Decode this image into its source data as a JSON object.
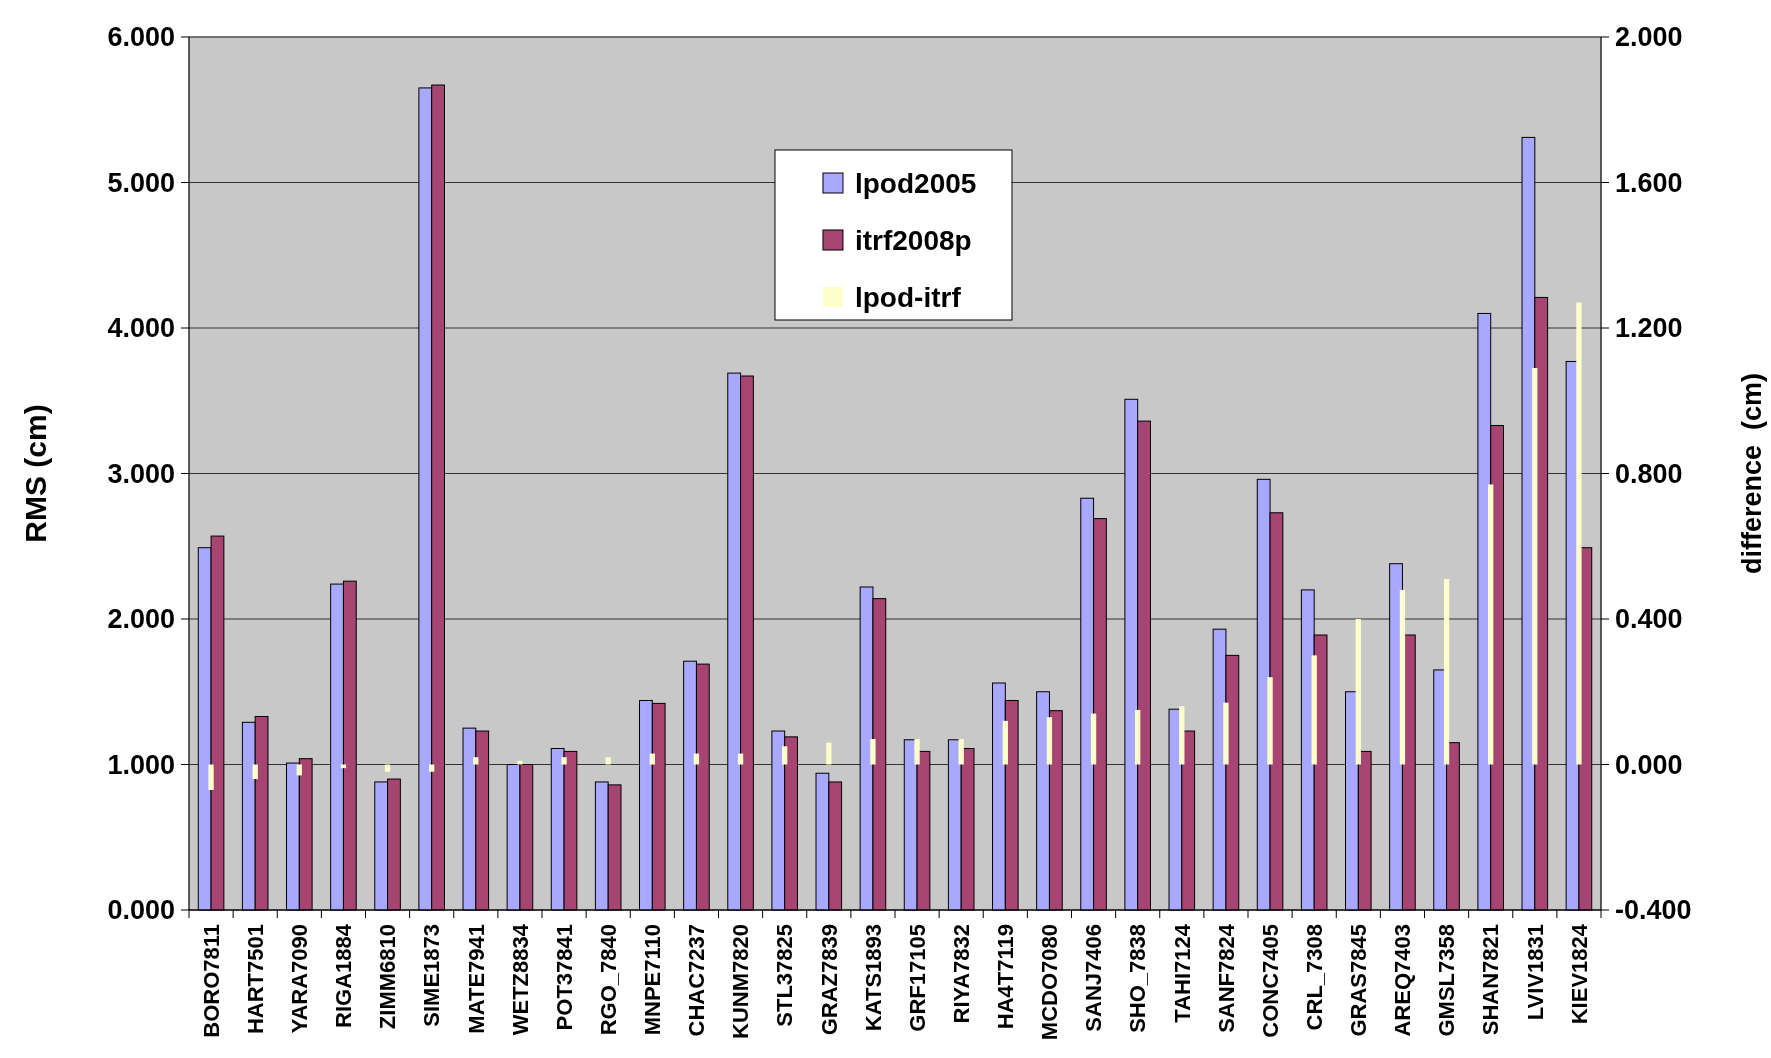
{
  "chart_data": {
    "type": "bar",
    "ylabel": "RMS (cm)",
    "y2label": "difference  (cm)",
    "categories": [
      "BORO7811",
      "HART7501",
      "YARA7090",
      "RIGA1884",
      "ZIMM6810",
      "SIME1873",
      "MATE7941",
      "WETZ8834",
      "POT37841",
      "RGO_7840",
      "MNPE7110",
      "CHAC7237",
      "KUNM7820",
      "STL37825",
      "GRAZ7839",
      "KATS1893",
      "GRF17105",
      "RIYA7832",
      "HA4T7119",
      "MCDO7080",
      "SANJ7406",
      "SHO_7838",
      "TAHI7124",
      "SANF7824",
      "CONC7405",
      "CRL_7308",
      "GRAS7845",
      "AREQ7403",
      "GMSL7358",
      "SHAN7821",
      "LVIV1831",
      "KIEV1824"
    ],
    "series": [
      {
        "name": "lpod2005",
        "color": "#a8a8ff",
        "values": [
          2.49,
          1.29,
          1.01,
          2.24,
          0.88,
          5.65,
          1.25,
          1.0,
          1.11,
          0.88,
          1.44,
          1.71,
          3.69,
          1.23,
          0.94,
          2.22,
          1.17,
          1.17,
          1.56,
          1.5,
          2.83,
          3.51,
          1.38,
          1.93,
          2.96,
          2.2,
          1.5,
          2.38,
          1.65,
          4.1,
          5.31,
          3.77
        ]
      },
      {
        "name": "itrf2008p",
        "color": "#a64472",
        "values": [
          2.57,
          1.33,
          1.04,
          2.26,
          0.9,
          5.67,
          1.23,
          1.0,
          1.09,
          0.86,
          1.42,
          1.69,
          3.67,
          1.19,
          0.88,
          2.14,
          1.09,
          1.11,
          1.44,
          1.37,
          2.69,
          3.36,
          1.23,
          1.75,
          2.73,
          1.89,
          1.09,
          1.89,
          1.15,
          3.33,
          4.21,
          2.49
        ]
      },
      {
        "name": "lpod-itrf",
        "color": "#ffffcc",
        "axis": "y2",
        "values": [
          -0.07,
          -0.04,
          -0.03,
          -0.01,
          -0.02,
          -0.02,
          0.02,
          0.01,
          0.02,
          0.02,
          0.03,
          0.03,
          0.03,
          0.05,
          0.06,
          0.07,
          0.07,
          0.07,
          0.12,
          0.13,
          0.14,
          0.15,
          0.16,
          0.17,
          0.24,
          0.3,
          0.4,
          0.48,
          0.51,
          0.77,
          1.09,
          1.27
        ]
      }
    ],
    "ylim": [
      0,
      6
    ],
    "yticks": [
      {
        "value": 0,
        "label": "0.000"
      },
      {
        "value": 1,
        "label": "1.000"
      },
      {
        "value": 2,
        "label": "2.000"
      },
      {
        "value": 3,
        "label": "3.000"
      },
      {
        "value": 4,
        "label": "4.000"
      },
      {
        "value": 5,
        "label": "5.000"
      },
      {
        "value": 6,
        "label": "6.000"
      }
    ],
    "y2lim": [
      -0.4,
      2
    ],
    "y2ticks": [
      {
        "value": -0.4,
        "label": "-0.400"
      },
      {
        "value": 0,
        "label": "0.000"
      },
      {
        "value": 0.4,
        "label": "0.400"
      },
      {
        "value": 0.8,
        "label": "0.800"
      },
      {
        "value": 1.2,
        "label": "1.200"
      },
      {
        "value": 1.6,
        "label": "1.600"
      },
      {
        "value": 2,
        "label": "2.000"
      }
    ],
    "grid": "y",
    "legend": "top"
  }
}
